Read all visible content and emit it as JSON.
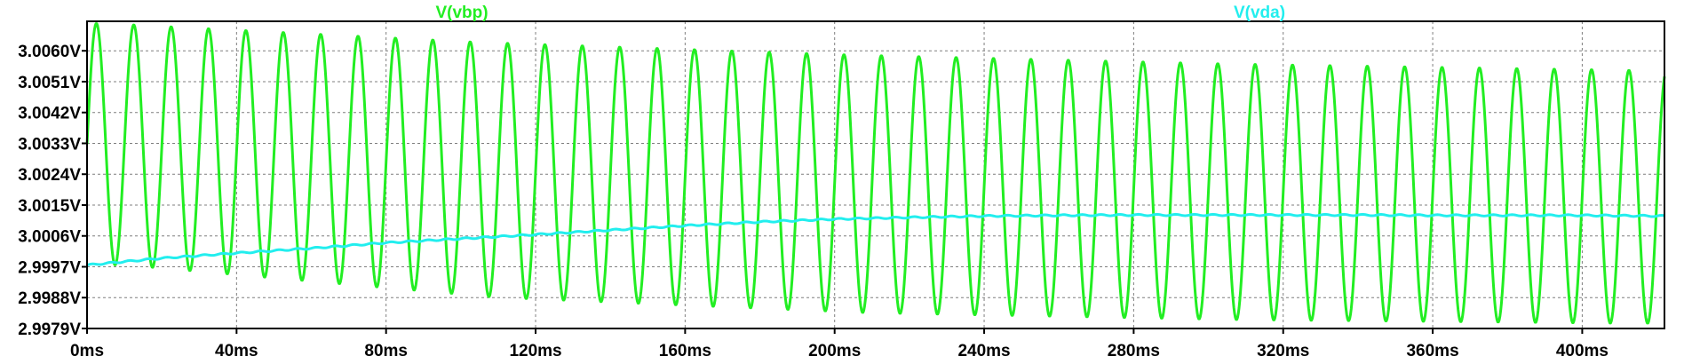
{
  "chart_data": {
    "type": "line",
    "grid": true,
    "background": "#ffffff",
    "x_unit": "ms",
    "xlim": [
      0,
      422
    ],
    "ylim": [
      2.9979,
      3.00686
    ],
    "x_ticks": [
      0,
      40,
      80,
      120,
      160,
      200,
      240,
      280,
      320,
      360,
      400
    ],
    "x_tick_labels": [
      "0ms",
      "40ms",
      "80ms",
      "120ms",
      "160ms",
      "200ms",
      "240ms",
      "280ms",
      "320ms",
      "360ms",
      "400ms"
    ],
    "y_ticks": [
      2.9979,
      2.9988,
      2.9997,
      3.0006,
      3.0015,
      3.0024,
      3.0033,
      3.0042,
      3.0051,
      3.006
    ],
    "y_tick_labels": [
      "2.9979V",
      "2.9988V",
      "2.9997V",
      "3.0006V",
      "3.0015V",
      "3.0024V",
      "3.0033V",
      "3.0042V",
      "3.0051V",
      "3.0060V"
    ],
    "legend_placement": "top",
    "series": [
      {
        "name": "V(vbp)",
        "color": "#22ee22",
        "waveform": "sine",
        "period_ms": 10,
        "x_start": 0,
        "x_end": 422,
        "peaks": [
          {
            "x": 5,
            "y": 3.0068
          },
          {
            "x": 105,
            "y": 3.00625
          },
          {
            "x": 205,
            "y": 3.00588
          },
          {
            "x": 305,
            "y": 3.00562
          },
          {
            "x": 415,
            "y": 3.00543
          }
        ],
        "troughs": [
          {
            "x": 10,
            "y": 2.99975
          },
          {
            "x": 110,
            "y": 2.9988
          },
          {
            "x": 210,
            "y": 2.99835
          },
          {
            "x": 310,
            "y": 2.99815
          },
          {
            "x": 410,
            "y": 2.99805
          }
        ]
      },
      {
        "name": "V(vda)",
        "color": "#22eeee",
        "x": [
          0,
          20,
          40,
          60,
          80,
          100,
          120,
          140,
          160,
          180,
          200,
          220,
          240,
          260,
          280,
          300,
          320,
          340,
          360,
          380,
          400,
          422
        ],
        "y": [
          2.99975,
          2.99995,
          3.0001,
          3.00024,
          3.0004,
          3.00052,
          3.00064,
          3.00077,
          3.0009,
          3.00101,
          3.00109,
          3.00114,
          3.00118,
          3.0012,
          3.00121,
          3.00121,
          3.00121,
          3.00121,
          3.0012,
          3.0012,
          3.0012,
          3.00118
        ],
        "ripple_amplitude": 2e-05,
        "ripple_period_ms": 5
      }
    ]
  }
}
